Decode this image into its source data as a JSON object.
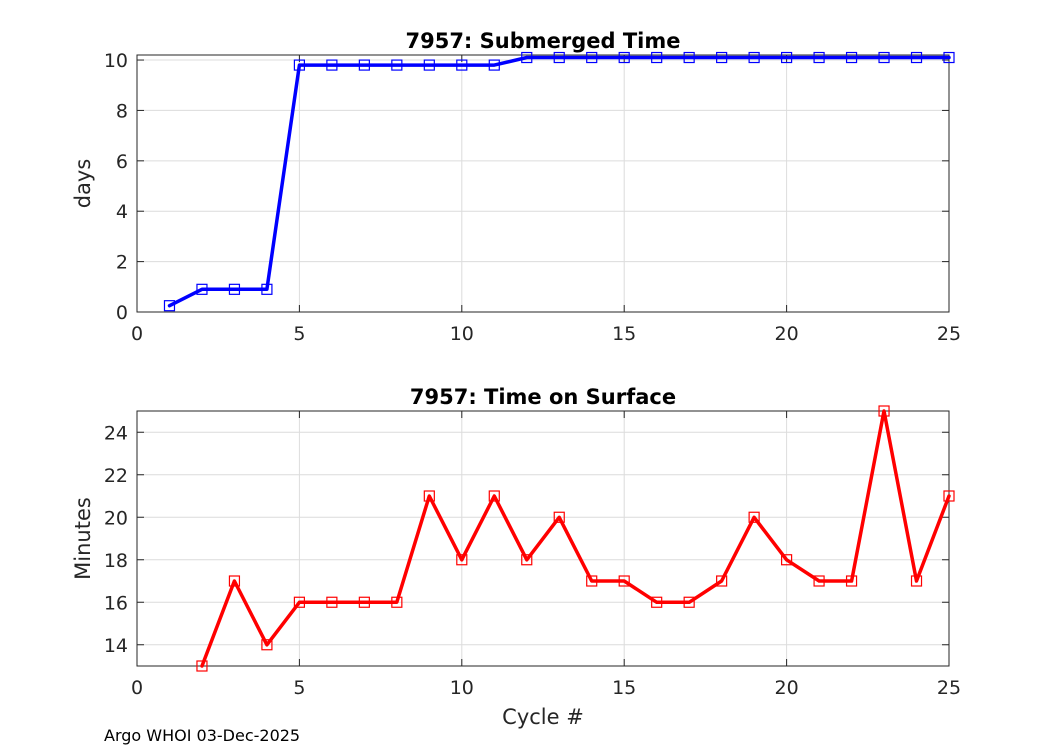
{
  "footer": "Argo WHOI 03-Dec-2025",
  "chart_data": [
    {
      "type": "line",
      "title": "7957: Submerged Time",
      "xlabel": "",
      "ylabel": "days",
      "xlim": [
        0,
        25
      ],
      "ylim": [
        0,
        10.2
      ],
      "xticks": [
        0,
        5,
        10,
        15,
        20,
        25
      ],
      "yticks": [
        0,
        2,
        4,
        6,
        8,
        10
      ],
      "grid": true,
      "color": "#0000ff",
      "marker": "square",
      "x": [
        1,
        2,
        3,
        4,
        5,
        6,
        7,
        8,
        9,
        10,
        11,
        12,
        13,
        14,
        15,
        16,
        17,
        18,
        19,
        20,
        21,
        22,
        23,
        24,
        25
      ],
      "values": [
        0.25,
        0.9,
        0.9,
        0.9,
        9.8,
        9.8,
        9.8,
        9.8,
        9.8,
        9.8,
        9.8,
        10.1,
        10.1,
        10.1,
        10.1,
        10.1,
        10.1,
        10.1,
        10.1,
        10.1,
        10.1,
        10.1,
        10.1,
        10.1,
        10.1
      ]
    },
    {
      "type": "line",
      "title": "7957: Time on Surface",
      "xlabel": "Cycle #",
      "ylabel": "Minutes",
      "xlim": [
        0,
        25
      ],
      "ylim": [
        13,
        25
      ],
      "xticks": [
        0,
        5,
        10,
        15,
        20,
        25
      ],
      "yticks": [
        14,
        16,
        18,
        20,
        22,
        24
      ],
      "grid": true,
      "color": "#ff0000",
      "marker": "square",
      "x": [
        2,
        3,
        4,
        5,
        6,
        7,
        8,
        9,
        10,
        11,
        12,
        13,
        14,
        15,
        16,
        17,
        18,
        19,
        20,
        21,
        22,
        23,
        24,
        25
      ],
      "values": [
        13,
        17,
        14,
        16,
        16,
        16,
        16,
        21,
        18,
        21,
        18,
        20,
        17,
        17,
        16,
        16,
        17,
        20,
        18,
        17,
        17,
        25,
        17,
        21
      ]
    }
  ]
}
